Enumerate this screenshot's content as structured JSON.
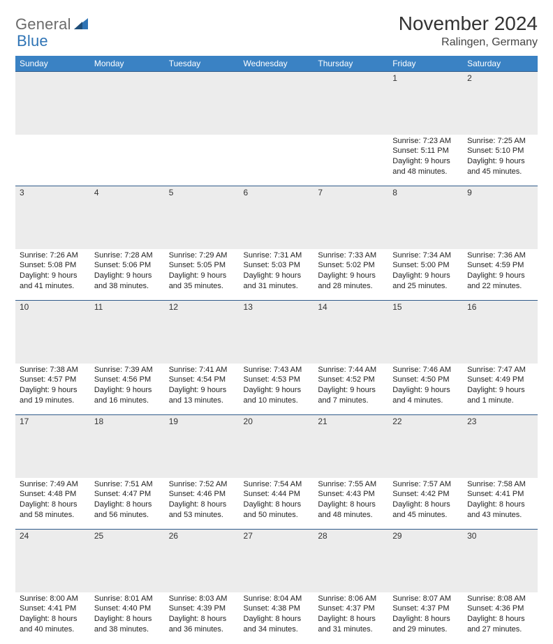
{
  "brand": {
    "part1": "General",
    "part2": "Blue"
  },
  "title": "November 2024",
  "location": "Ralingen, Germany",
  "colors": {
    "header_bg": "#3a82c4",
    "header_text": "#ffffff",
    "daynum_bg": "#ececec",
    "rule": "#2f5a8a",
    "brand_gray": "#6b6b6b",
    "brand_blue": "#2f74b5"
  },
  "day_headers": [
    "Sunday",
    "Monday",
    "Tuesday",
    "Wednesday",
    "Thursday",
    "Friday",
    "Saturday"
  ],
  "weeks": [
    [
      null,
      null,
      null,
      null,
      null,
      {
        "n": "1",
        "sr": "Sunrise: 7:23 AM",
        "ss": "Sunset: 5:11 PM",
        "d1": "Daylight: 9 hours",
        "d2": "and 48 minutes."
      },
      {
        "n": "2",
        "sr": "Sunrise: 7:25 AM",
        "ss": "Sunset: 5:10 PM",
        "d1": "Daylight: 9 hours",
        "d2": "and 45 minutes."
      }
    ],
    [
      {
        "n": "3",
        "sr": "Sunrise: 7:26 AM",
        "ss": "Sunset: 5:08 PM",
        "d1": "Daylight: 9 hours",
        "d2": "and 41 minutes."
      },
      {
        "n": "4",
        "sr": "Sunrise: 7:28 AM",
        "ss": "Sunset: 5:06 PM",
        "d1": "Daylight: 9 hours",
        "d2": "and 38 minutes."
      },
      {
        "n": "5",
        "sr": "Sunrise: 7:29 AM",
        "ss": "Sunset: 5:05 PM",
        "d1": "Daylight: 9 hours",
        "d2": "and 35 minutes."
      },
      {
        "n": "6",
        "sr": "Sunrise: 7:31 AM",
        "ss": "Sunset: 5:03 PM",
        "d1": "Daylight: 9 hours",
        "d2": "and 31 minutes."
      },
      {
        "n": "7",
        "sr": "Sunrise: 7:33 AM",
        "ss": "Sunset: 5:02 PM",
        "d1": "Daylight: 9 hours",
        "d2": "and 28 minutes."
      },
      {
        "n": "8",
        "sr": "Sunrise: 7:34 AM",
        "ss": "Sunset: 5:00 PM",
        "d1": "Daylight: 9 hours",
        "d2": "and 25 minutes."
      },
      {
        "n": "9",
        "sr": "Sunrise: 7:36 AM",
        "ss": "Sunset: 4:59 PM",
        "d1": "Daylight: 9 hours",
        "d2": "and 22 minutes."
      }
    ],
    [
      {
        "n": "10",
        "sr": "Sunrise: 7:38 AM",
        "ss": "Sunset: 4:57 PM",
        "d1": "Daylight: 9 hours",
        "d2": "and 19 minutes."
      },
      {
        "n": "11",
        "sr": "Sunrise: 7:39 AM",
        "ss": "Sunset: 4:56 PM",
        "d1": "Daylight: 9 hours",
        "d2": "and 16 minutes."
      },
      {
        "n": "12",
        "sr": "Sunrise: 7:41 AM",
        "ss": "Sunset: 4:54 PM",
        "d1": "Daylight: 9 hours",
        "d2": "and 13 minutes."
      },
      {
        "n": "13",
        "sr": "Sunrise: 7:43 AM",
        "ss": "Sunset: 4:53 PM",
        "d1": "Daylight: 9 hours",
        "d2": "and 10 minutes."
      },
      {
        "n": "14",
        "sr": "Sunrise: 7:44 AM",
        "ss": "Sunset: 4:52 PM",
        "d1": "Daylight: 9 hours",
        "d2": "and 7 minutes."
      },
      {
        "n": "15",
        "sr": "Sunrise: 7:46 AM",
        "ss": "Sunset: 4:50 PM",
        "d1": "Daylight: 9 hours",
        "d2": "and 4 minutes."
      },
      {
        "n": "16",
        "sr": "Sunrise: 7:47 AM",
        "ss": "Sunset: 4:49 PM",
        "d1": "Daylight: 9 hours",
        "d2": "and 1 minute."
      }
    ],
    [
      {
        "n": "17",
        "sr": "Sunrise: 7:49 AM",
        "ss": "Sunset: 4:48 PM",
        "d1": "Daylight: 8 hours",
        "d2": "and 58 minutes."
      },
      {
        "n": "18",
        "sr": "Sunrise: 7:51 AM",
        "ss": "Sunset: 4:47 PM",
        "d1": "Daylight: 8 hours",
        "d2": "and 56 minutes."
      },
      {
        "n": "19",
        "sr": "Sunrise: 7:52 AM",
        "ss": "Sunset: 4:46 PM",
        "d1": "Daylight: 8 hours",
        "d2": "and 53 minutes."
      },
      {
        "n": "20",
        "sr": "Sunrise: 7:54 AM",
        "ss": "Sunset: 4:44 PM",
        "d1": "Daylight: 8 hours",
        "d2": "and 50 minutes."
      },
      {
        "n": "21",
        "sr": "Sunrise: 7:55 AM",
        "ss": "Sunset: 4:43 PM",
        "d1": "Daylight: 8 hours",
        "d2": "and 48 minutes."
      },
      {
        "n": "22",
        "sr": "Sunrise: 7:57 AM",
        "ss": "Sunset: 4:42 PM",
        "d1": "Daylight: 8 hours",
        "d2": "and 45 minutes."
      },
      {
        "n": "23",
        "sr": "Sunrise: 7:58 AM",
        "ss": "Sunset: 4:41 PM",
        "d1": "Daylight: 8 hours",
        "d2": "and 43 minutes."
      }
    ],
    [
      {
        "n": "24",
        "sr": "Sunrise: 8:00 AM",
        "ss": "Sunset: 4:41 PM",
        "d1": "Daylight: 8 hours",
        "d2": "and 40 minutes."
      },
      {
        "n": "25",
        "sr": "Sunrise: 8:01 AM",
        "ss": "Sunset: 4:40 PM",
        "d1": "Daylight: 8 hours",
        "d2": "and 38 minutes."
      },
      {
        "n": "26",
        "sr": "Sunrise: 8:03 AM",
        "ss": "Sunset: 4:39 PM",
        "d1": "Daylight: 8 hours",
        "d2": "and 36 minutes."
      },
      {
        "n": "27",
        "sr": "Sunrise: 8:04 AM",
        "ss": "Sunset: 4:38 PM",
        "d1": "Daylight: 8 hours",
        "d2": "and 34 minutes."
      },
      {
        "n": "28",
        "sr": "Sunrise: 8:06 AM",
        "ss": "Sunset: 4:37 PM",
        "d1": "Daylight: 8 hours",
        "d2": "and 31 minutes."
      },
      {
        "n": "29",
        "sr": "Sunrise: 8:07 AM",
        "ss": "Sunset: 4:37 PM",
        "d1": "Daylight: 8 hours",
        "d2": "and 29 minutes."
      },
      {
        "n": "30",
        "sr": "Sunrise: 8:08 AM",
        "ss": "Sunset: 4:36 PM",
        "d1": "Daylight: 8 hours",
        "d2": "and 27 minutes."
      }
    ]
  ]
}
